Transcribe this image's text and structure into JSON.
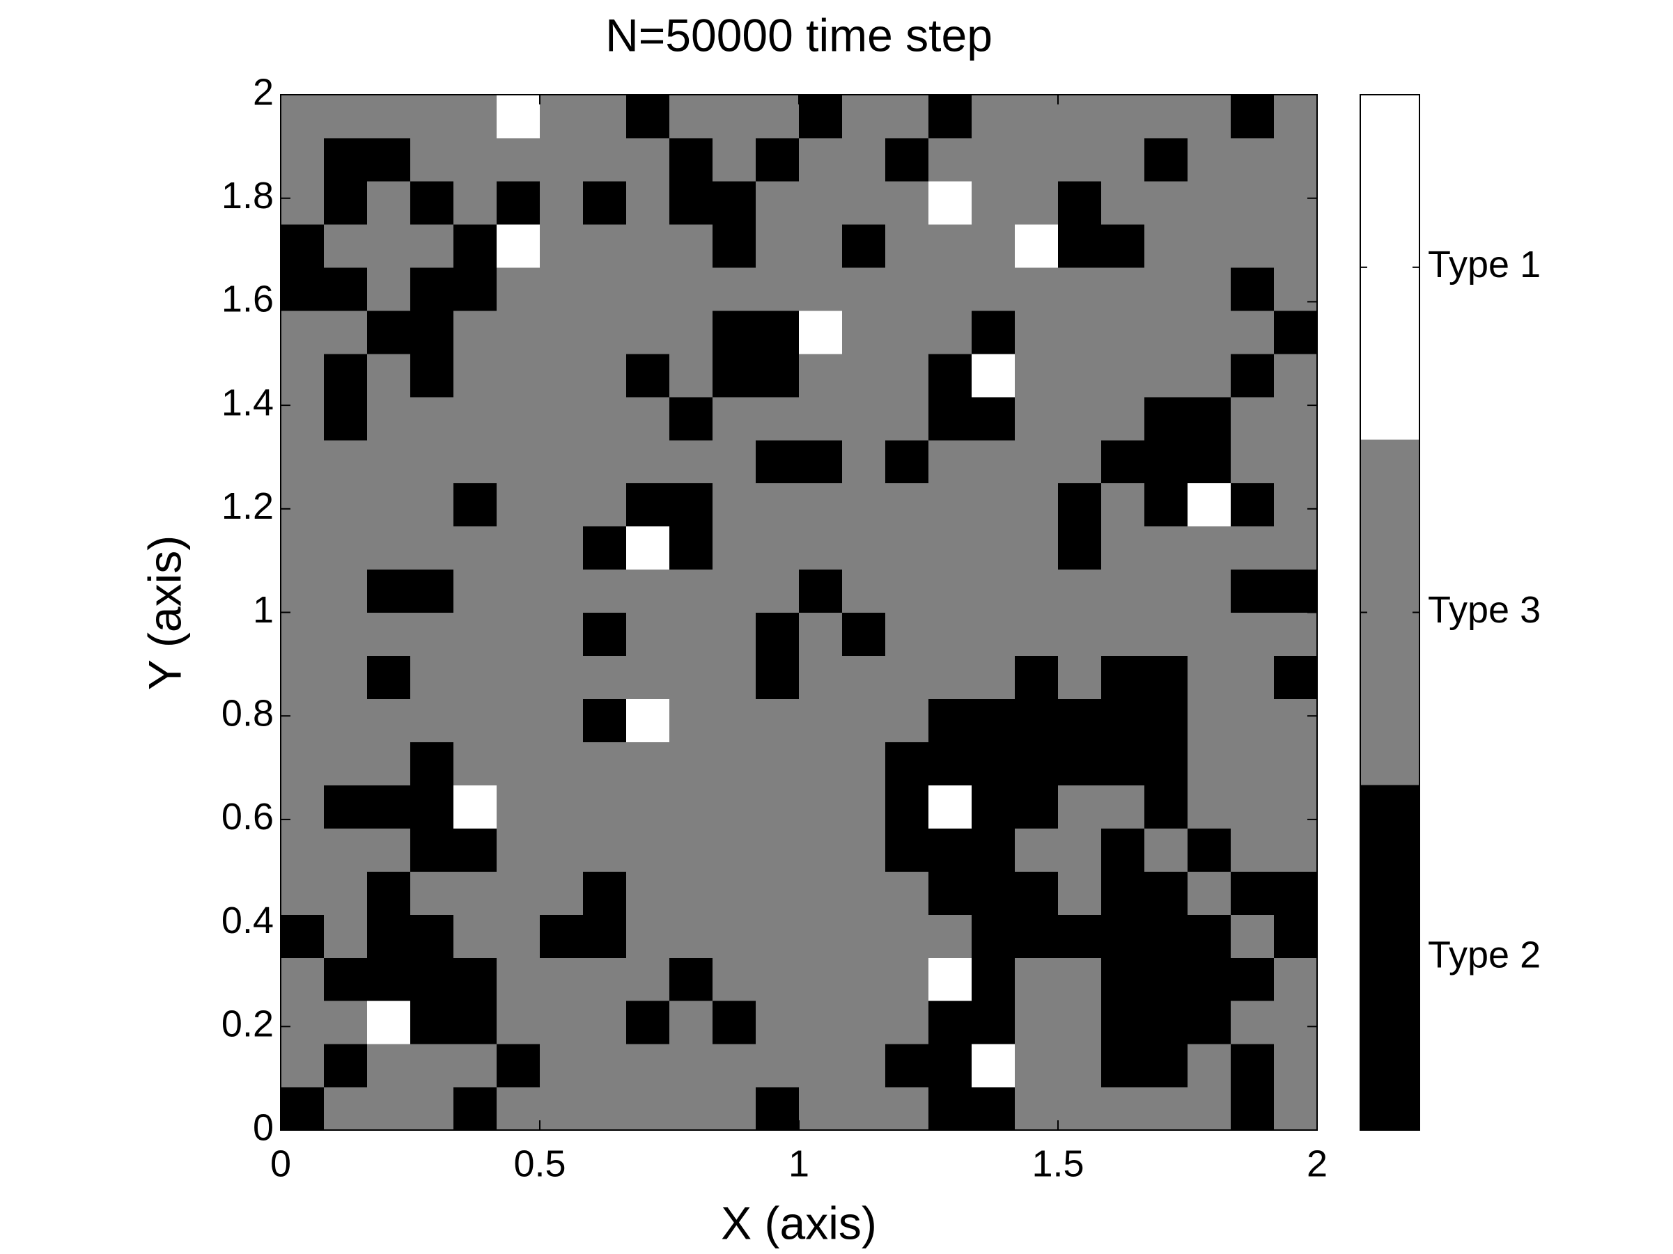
{
  "chart_data": {
    "type": "heatmap",
    "title": "N=50000 time step",
    "x_label": "X (axis)",
    "y_label": "Y (axis)",
    "xlim": [
      0,
      2
    ],
    "ylim": [
      0,
      2
    ],
    "xticks": [
      0,
      0.5,
      1,
      1.5,
      2
    ],
    "yticks": [
      0,
      0.2,
      0.4,
      0.6,
      0.8,
      1,
      1.2,
      1.4,
      1.6,
      1.8,
      2
    ],
    "colorbar": {
      "lim": [
        0.5,
        3.5
      ],
      "colors": [
        "#000000",
        "#808080",
        "#ffffff"
      ],
      "ticks": [
        {
          "value": 1,
          "label": "Type 2"
        },
        {
          "value": 2,
          "label": "Type 3"
        },
        {
          "value": 3,
          "label": "Type 1"
        }
      ]
    },
    "z": [
      [
        1,
        2,
        2,
        2,
        1,
        2,
        2,
        2,
        2,
        2,
        2,
        1,
        2,
        2,
        2,
        1,
        1,
        2,
        2,
        2,
        2,
        2,
        1,
        2
      ],
      [
        2,
        1,
        2,
        2,
        2,
        1,
        2,
        2,
        2,
        2,
        2,
        2,
        2,
        2,
        1,
        1,
        3,
        2,
        2,
        1,
        1,
        2,
        1,
        2
      ],
      [
        2,
        2,
        3,
        1,
        1,
        2,
        2,
        2,
        1,
        2,
        1,
        2,
        2,
        2,
        2,
        1,
        1,
        2,
        2,
        1,
        1,
        1,
        2,
        2
      ],
      [
        2,
        1,
        1,
        1,
        1,
        2,
        2,
        2,
        2,
        1,
        2,
        2,
        2,
        2,
        2,
        3,
        1,
        2,
        2,
        1,
        1,
        1,
        1,
        2
      ],
      [
        1,
        2,
        1,
        1,
        2,
        2,
        1,
        1,
        2,
        2,
        2,
        2,
        2,
        2,
        2,
        2,
        1,
        1,
        1,
        1,
        1,
        1,
        2,
        1
      ],
      [
        2,
        2,
        1,
        2,
        2,
        2,
        2,
        1,
        2,
        2,
        2,
        2,
        2,
        2,
        2,
        1,
        1,
        1,
        2,
        1,
        1,
        2,
        1,
        1
      ],
      [
        2,
        2,
        2,
        1,
        1,
        2,
        2,
        2,
        2,
        2,
        2,
        2,
        2,
        2,
        1,
        1,
        1,
        2,
        2,
        1,
        2,
        1,
        2,
        2
      ],
      [
        2,
        1,
        1,
        1,
        3,
        2,
        2,
        2,
        2,
        2,
        2,
        2,
        2,
        2,
        1,
        3,
        1,
        1,
        2,
        2,
        1,
        2,
        2,
        2
      ],
      [
        2,
        2,
        2,
        1,
        2,
        2,
        2,
        2,
        2,
        2,
        2,
        2,
        2,
        2,
        1,
        1,
        1,
        1,
        1,
        1,
        1,
        2,
        2,
        2
      ],
      [
        2,
        2,
        2,
        2,
        2,
        2,
        2,
        1,
        3,
        2,
        2,
        2,
        2,
        2,
        2,
        1,
        1,
        1,
        1,
        1,
        1,
        2,
        2,
        2
      ],
      [
        2,
        2,
        1,
        2,
        2,
        2,
        2,
        2,
        2,
        2,
        2,
        1,
        2,
        2,
        2,
        2,
        2,
        1,
        2,
        1,
        1,
        2,
        2,
        1
      ],
      [
        2,
        2,
        2,
        2,
        2,
        2,
        2,
        1,
        2,
        2,
        2,
        1,
        2,
        1,
        2,
        2,
        2,
        2,
        2,
        2,
        2,
        2,
        2,
        2
      ],
      [
        2,
        2,
        1,
        1,
        2,
        2,
        2,
        2,
        2,
        2,
        2,
        2,
        1,
        2,
        2,
        2,
        2,
        2,
        2,
        2,
        2,
        2,
        1,
        1
      ],
      [
        2,
        2,
        2,
        2,
        2,
        2,
        2,
        1,
        3,
        1,
        2,
        2,
        2,
        2,
        2,
        2,
        2,
        2,
        1,
        2,
        2,
        2,
        2,
        2
      ],
      [
        2,
        2,
        2,
        2,
        1,
        2,
        2,
        2,
        1,
        1,
        2,
        2,
        2,
        2,
        2,
        2,
        2,
        2,
        1,
        2,
        1,
        3,
        1,
        2
      ],
      [
        2,
        2,
        2,
        2,
        2,
        2,
        2,
        2,
        2,
        2,
        2,
        1,
        1,
        2,
        1,
        2,
        2,
        2,
        2,
        1,
        1,
        1,
        2,
        2
      ],
      [
        2,
        1,
        2,
        2,
        2,
        2,
        2,
        2,
        2,
        1,
        2,
        2,
        2,
        2,
        2,
        1,
        1,
        2,
        2,
        2,
        1,
        1,
        2,
        2
      ],
      [
        2,
        1,
        2,
        1,
        2,
        2,
        2,
        2,
        1,
        2,
        1,
        1,
        2,
        2,
        2,
        1,
        3,
        2,
        2,
        2,
        2,
        2,
        1,
        2
      ],
      [
        2,
        2,
        1,
        1,
        2,
        2,
        2,
        2,
        2,
        2,
        1,
        1,
        3,
        2,
        2,
        2,
        1,
        2,
        2,
        2,
        2,
        2,
        2,
        1
      ],
      [
        1,
        1,
        2,
        1,
        1,
        2,
        2,
        2,
        2,
        2,
        2,
        2,
        2,
        2,
        2,
        2,
        2,
        2,
        2,
        2,
        2,
        2,
        1,
        2
      ],
      [
        1,
        2,
        2,
        2,
        1,
        3,
        2,
        2,
        2,
        2,
        1,
        2,
        2,
        1,
        2,
        2,
        2,
        3,
        1,
        1,
        2,
        2,
        2,
        2
      ],
      [
        2,
        1,
        2,
        1,
        2,
        1,
        2,
        1,
        2,
        1,
        1,
        2,
        2,
        2,
        2,
        3,
        2,
        2,
        1,
        2,
        2,
        2,
        2,
        2
      ],
      [
        2,
        1,
        1,
        2,
        2,
        2,
        2,
        2,
        2,
        1,
        2,
        1,
        2,
        2,
        1,
        2,
        2,
        2,
        2,
        2,
        1,
        2,
        2,
        2
      ],
      [
        2,
        2,
        2,
        2,
        2,
        3,
        2,
        2,
        1,
        2,
        2,
        2,
        1,
        2,
        2,
        1,
        2,
        2,
        2,
        2,
        2,
        2,
        1,
        2
      ]
    ]
  }
}
